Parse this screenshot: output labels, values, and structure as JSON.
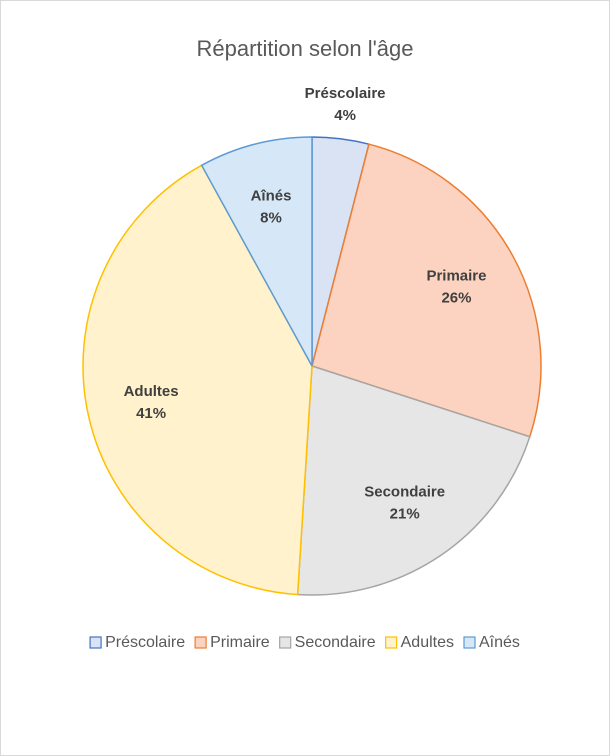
{
  "chart_data": {
    "type": "pie",
    "title": "Répartition selon l'âge",
    "categories": [
      "Préscolaire",
      "Primaire",
      "Secondaire",
      "Adultes",
      "Aînés"
    ],
    "values": [
      4,
      26,
      21,
      41,
      8
    ],
    "value_labels": [
      "4%",
      "26%",
      "21%",
      "41%",
      "8%"
    ],
    "colors": [
      "#dae3f3",
      "#fbd3c0",
      "#e7e6e6",
      "#fff2cc",
      "#d6e8f8"
    ],
    "edge_colors": [
      "#4472c4",
      "#ed7d31",
      "#a5a5a5",
      "#ffc000",
      "#5b9bd5"
    ],
    "legend": "bottom"
  }
}
